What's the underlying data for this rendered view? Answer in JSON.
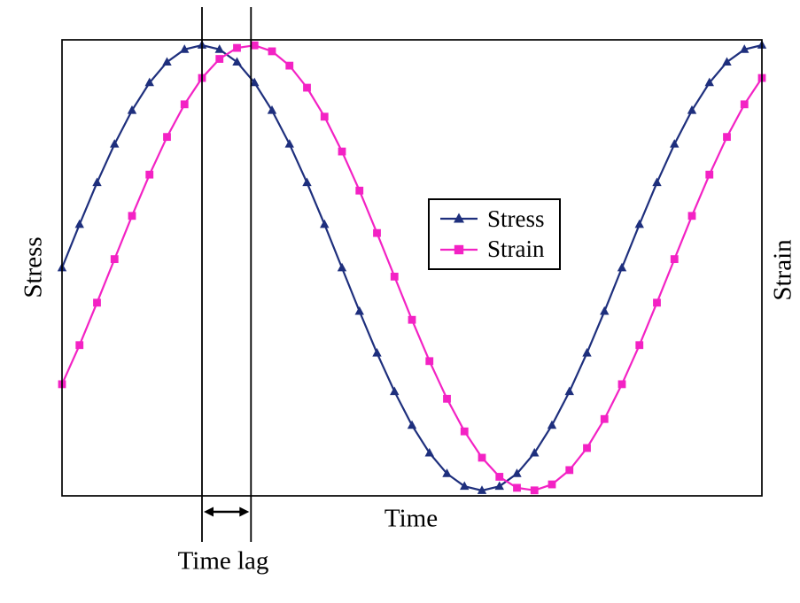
{
  "chart_data": {
    "type": "line",
    "grid": false,
    "ticks_visible": false,
    "legend_position": "center-right",
    "axes": {
      "x_label": "Time",
      "y_label_left": "Stress",
      "y_label_right": "Strain"
    },
    "x_range": [
      0,
      100
    ],
    "y_range": [
      -1,
      1
    ],
    "x": [
      0,
      2.5,
      5,
      7.5,
      10,
      12.5,
      15,
      17.5,
      20,
      22.5,
      25,
      27.5,
      30,
      32.5,
      35,
      37.5,
      40,
      42.5,
      45,
      47.5,
      50,
      52.5,
      55,
      57.5,
      60,
      62.5,
      65,
      67.5,
      70,
      72.5,
      75,
      77.5,
      80,
      82.5,
      85,
      87.5,
      90,
      92.5,
      95,
      97.5,
      100
    ],
    "series": [
      {
        "name": "Stress",
        "color": "#1e2f7d",
        "marker": "triangle",
        "values": [
          0,
          0.1951,
          0.3827,
          0.5556,
          0.7071,
          0.8315,
          0.9239,
          0.9808,
          1,
          0.9808,
          0.9239,
          0.8315,
          0.7071,
          0.5556,
          0.3827,
          0.1951,
          0,
          -0.1951,
          -0.3827,
          -0.5556,
          -0.7071,
          -0.8315,
          -0.9239,
          -0.9808,
          -1,
          -0.9808,
          -0.9239,
          -0.8315,
          -0.7071,
          -0.5556,
          -0.3827,
          -0.1951,
          0,
          0.1951,
          0.3827,
          0.5556,
          0.7071,
          0.8315,
          0.9239,
          0.9808,
          1
        ]
      },
      {
        "name": "Strain",
        "color": "#f322c4",
        "marker": "square",
        "values": [
          -0.5225,
          -0.3469,
          -0.1564,
          0.0393,
          0.2334,
          0.4187,
          0.5878,
          0.7343,
          0.8526,
          0.9382,
          0.9877,
          0.9992,
          0.9724,
          0.9081,
          0.809,
          0.6788,
          0.5225,
          0.3469,
          0.1564,
          -0.0393,
          -0.2334,
          -0.4187,
          -0.5878,
          -0.7343,
          -0.8526,
          -0.9382,
          -0.9877,
          -0.9992,
          -0.9724,
          -0.9081,
          -0.809,
          -0.6788,
          -0.5225,
          -0.3469,
          -0.1564,
          0.0393,
          0.2334,
          0.4187,
          0.5878,
          0.7343,
          0.8526
        ]
      }
    ],
    "annotations": {
      "guide_lines_x": [
        20,
        27
      ],
      "time_lag_label": "Time lag"
    }
  }
}
